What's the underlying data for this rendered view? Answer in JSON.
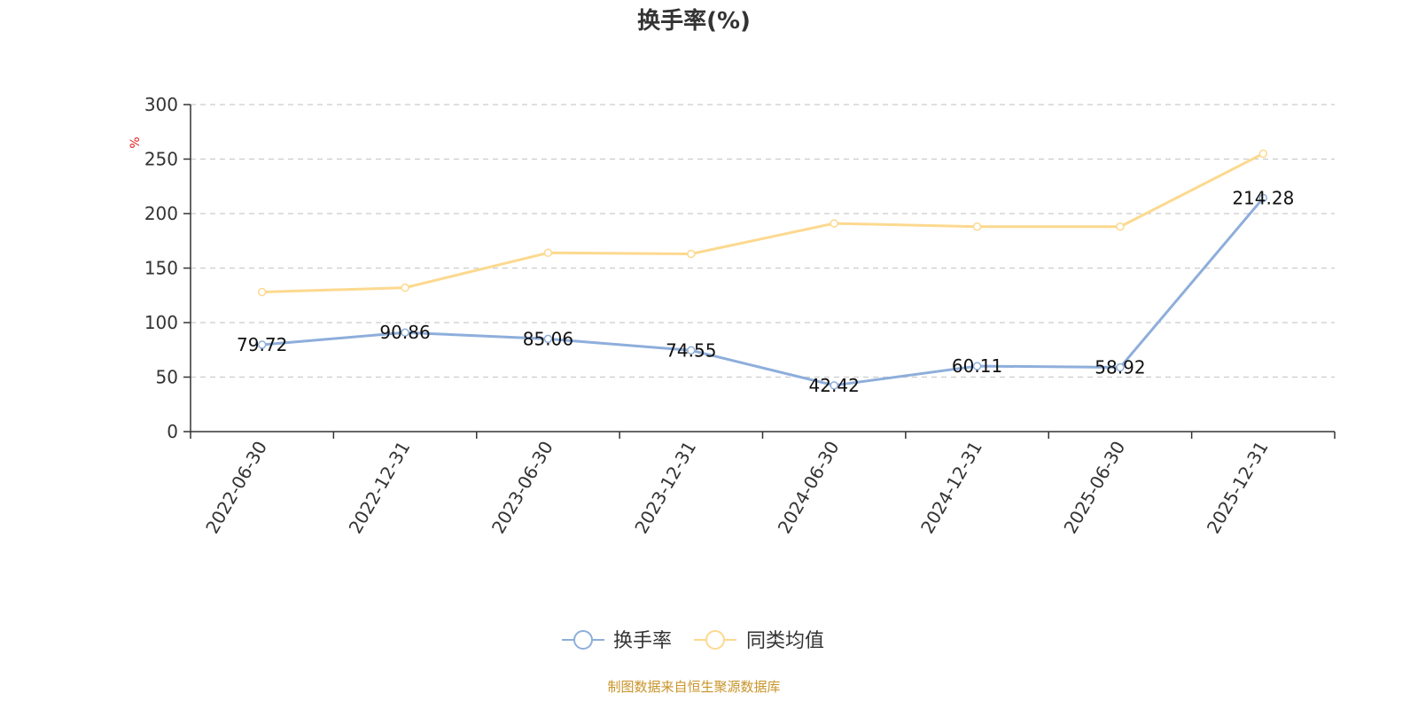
{
  "chart_data": {
    "type": "line",
    "title": "换手率(%)",
    "ylabel": "%",
    "xlabel": "",
    "ylim": [
      0,
      300
    ],
    "yticks": [
      0,
      50,
      100,
      150,
      200,
      250,
      300
    ],
    "categories": [
      "2022-06-30",
      "2022-12-31",
      "2023-06-30",
      "2023-12-31",
      "2024-06-30",
      "2024-12-31",
      "2025-06-30",
      "2025-12-31"
    ],
    "series": [
      {
        "name": "换手率",
        "color": "#8eaedb",
        "values": [
          79.72,
          90.86,
          85.06,
          74.55,
          42.42,
          60.11,
          58.92,
          214.28
        ],
        "labels": [
          "79.72",
          "90.86",
          "85.06",
          "74.55",
          "42.42",
          "60.11",
          "58.92",
          "214.28"
        ]
      },
      {
        "name": "同类均值",
        "color": "#fcd98f",
        "values": [
          128,
          132,
          164,
          163,
          191,
          188,
          188,
          255
        ]
      }
    ],
    "grid": true,
    "legend": "bottom-center"
  },
  "source_note": "制图数据来自恒生聚源数据库"
}
